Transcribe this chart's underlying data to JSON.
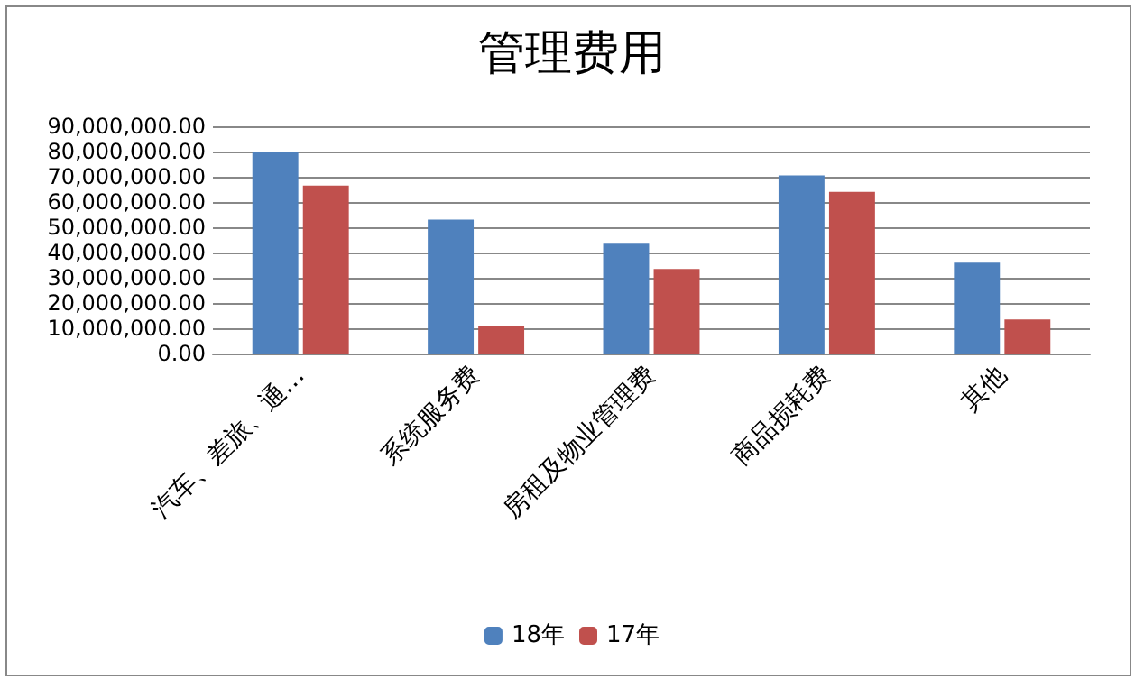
{
  "chart_data": {
    "type": "bar",
    "title": "管理费用",
    "categories": [
      "汽车、差旅、通…",
      "系统服务费",
      "房租及物业管理费",
      "商品损耗费",
      "其他"
    ],
    "series": [
      {
        "name": "18年",
        "color": "#4f81bd",
        "values": [
          80000000,
          53000000,
          43500000,
          70500000,
          36000000
        ]
      },
      {
        "name": "17年",
        "color": "#c0504d",
        "values": [
          66500000,
          11000000,
          33500000,
          64000000,
          13500000
        ]
      }
    ],
    "ylim": [
      0,
      90000000
    ],
    "yticks": [
      {
        "value": 0,
        "label": "0.00"
      },
      {
        "value": 10000000,
        "label": "10,000,000.00"
      },
      {
        "value": 20000000,
        "label": "20,000,000.00"
      },
      {
        "value": 30000000,
        "label": "30,000,000.00"
      },
      {
        "value": 40000000,
        "label": "40,000,000.00"
      },
      {
        "value": 50000000,
        "label": "50,000,000.00"
      },
      {
        "value": 60000000,
        "label": "60,000,000.00"
      },
      {
        "value": 70000000,
        "label": "70,000,000.00"
      },
      {
        "value": 80000000,
        "label": "80,000,000.00"
      },
      {
        "value": 90000000,
        "label": "90,000,000.00"
      }
    ],
    "grid": "y",
    "legend": "bottom"
  }
}
